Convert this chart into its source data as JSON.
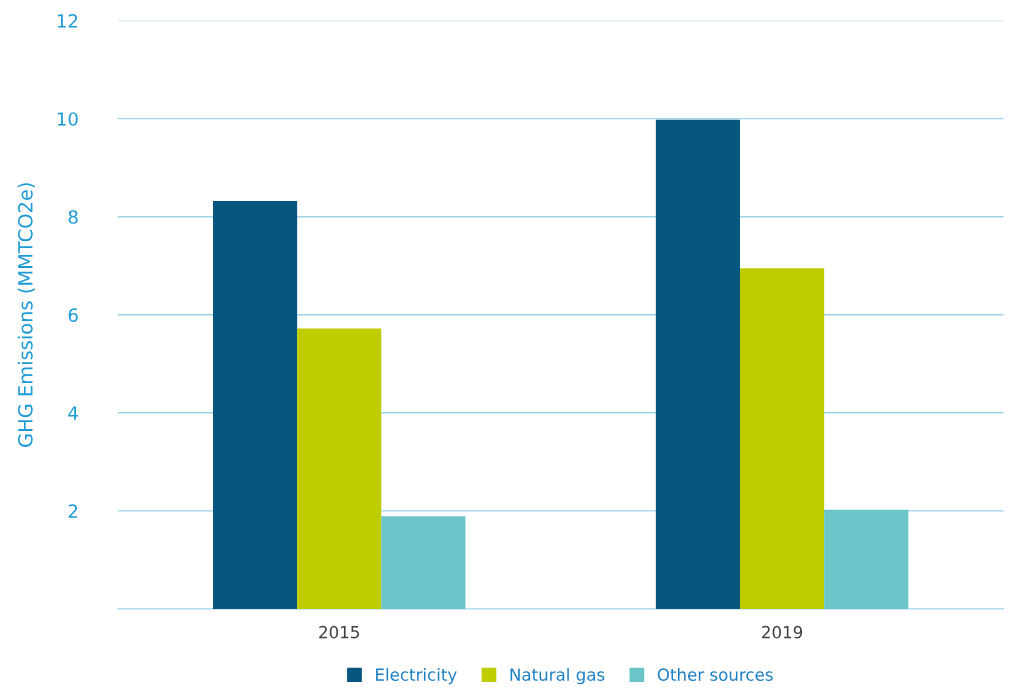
{
  "chart_data": {
    "type": "bar",
    "ylabel": "GHG Emissions (MMTCO2e)",
    "categories": [
      "2015",
      "2019"
    ],
    "series": [
      {
        "name": "Electricity",
        "color": "#06567f",
        "values": [
          8.32,
          9.98
        ]
      },
      {
        "name": "Natural gas",
        "color": "#bfcc00",
        "values": [
          5.72,
          6.95
        ]
      },
      {
        "name": "Other sources",
        "color": "#6bc4c8",
        "values": [
          1.89,
          2.02
        ]
      }
    ],
    "ylim": [
      0,
      12
    ],
    "yticks": [
      2,
      4,
      6,
      8,
      10,
      12
    ],
    "grid": "y",
    "legend": "bottom"
  }
}
